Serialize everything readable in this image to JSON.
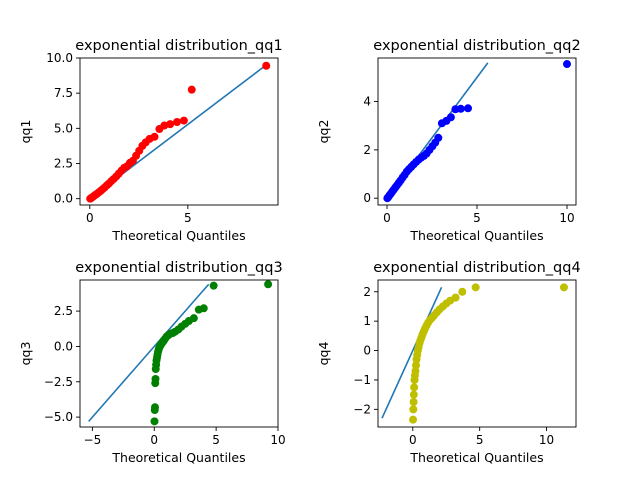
{
  "chart_data": [
    {
      "type": "scatter",
      "title": "exponential distribution_qq1",
      "xlabel": "Theoretical Quantiles",
      "ylabel": "qq1",
      "xlim": [
        -0.5,
        9.6
      ],
      "ylim": [
        -0.45,
        10.0
      ],
      "xticks": [
        "0",
        "5"
      ],
      "yticks": [
        "0.0",
        "2.5",
        "5.0",
        "7.5",
        "10.0"
      ],
      "point_color": "#ff0000",
      "line_color": "#1f77b4",
      "reference_line": {
        "x": [
          0,
          9.0
        ],
        "y": [
          0,
          9.5
        ]
      },
      "points": {
        "x": [
          0.02,
          0.08,
          0.15,
          0.22,
          0.3,
          0.38,
          0.47,
          0.56,
          0.66,
          0.76,
          0.87,
          0.98,
          1.1,
          1.22,
          1.35,
          1.48,
          1.62,
          1.76,
          1.9,
          2.05,
          2.2,
          2.36,
          2.52,
          2.68,
          2.85,
          3.05,
          3.3,
          3.55,
          3.8,
          4.1,
          4.45,
          4.8,
          5.2,
          9.0
        ],
        "y": [
          0.0,
          0.05,
          0.12,
          0.2,
          0.28,
          0.36,
          0.46,
          0.56,
          0.68,
          0.8,
          0.95,
          1.08,
          1.25,
          1.4,
          1.58,
          1.78,
          2.0,
          2.2,
          2.3,
          2.55,
          2.7,
          3.05,
          3.4,
          3.75,
          4.0,
          4.25,
          4.4,
          4.95,
          5.2,
          5.3,
          5.45,
          5.55,
          7.75,
          9.45
        ]
      }
    },
    {
      "type": "scatter",
      "title": "exponential distribution_qq2",
      "xlabel": "Theoretical Quantiles",
      "ylabel": "qq2",
      "xlim": [
        -0.5,
        10.5
      ],
      "ylim": [
        -0.28,
        5.8
      ],
      "xticks": [
        "0",
        "5",
        "10"
      ],
      "yticks": [
        "0",
        "2",
        "4"
      ],
      "point_color": "#0000ff",
      "line_color": "#1f77b4",
      "reference_line": {
        "x": [
          0,
          5.6
        ],
        "y": [
          0,
          5.6
        ]
      },
      "points": {
        "x": [
          0.02,
          0.08,
          0.15,
          0.22,
          0.3,
          0.38,
          0.47,
          0.56,
          0.66,
          0.76,
          0.87,
          0.98,
          1.1,
          1.22,
          1.35,
          1.48,
          1.62,
          1.76,
          1.9,
          2.05,
          2.2,
          2.36,
          2.52,
          2.68,
          2.85,
          3.05,
          3.3,
          3.55,
          3.8,
          4.1,
          4.5,
          10.0
        ],
        "y": [
          0.0,
          0.06,
          0.13,
          0.2,
          0.28,
          0.36,
          0.45,
          0.54,
          0.64,
          0.74,
          0.86,
          0.97,
          1.1,
          1.2,
          1.3,
          1.4,
          1.5,
          1.6,
          1.68,
          1.75,
          1.85,
          2.0,
          2.15,
          2.3,
          2.5,
          3.1,
          3.2,
          3.35,
          3.68,
          3.7,
          3.72,
          5.55
        ]
      }
    },
    {
      "type": "scatter",
      "title": "exponential distribution_qq3",
      "xlabel": "Theoretical Quantiles",
      "ylabel": "qq3",
      "xlim": [
        -6.0,
        10.0
      ],
      "ylim": [
        -5.7,
        4.7
      ],
      "xticks": [
        "−5",
        "0",
        "5",
        "10"
      ],
      "yticks": [
        "−5.0",
        "−2.5",
        "0.0",
        "2.5"
      ],
      "point_color": "#008000",
      "line_color": "#1f77b4",
      "reference_line": {
        "x": [
          -5.3,
          4.4
        ],
        "y": [
          -5.3,
          4.4
        ]
      },
      "points": {
        "x": [
          0.02,
          0.04,
          0.06,
          0.08,
          0.1,
          0.12,
          0.15,
          0.18,
          0.22,
          0.26,
          0.3,
          0.35,
          0.4,
          0.46,
          0.52,
          0.6,
          0.68,
          0.78,
          0.88,
          1.0,
          1.15,
          1.3,
          1.5,
          1.7,
          1.95,
          2.2,
          2.5,
          2.8,
          3.2,
          3.6,
          4.0,
          4.8,
          9.2
        ],
        "y": [
          -5.3,
          -4.5,
          -4.3,
          -2.6,
          -2.3,
          -1.6,
          -1.3,
          -1.0,
          -0.8,
          -0.6,
          -0.4,
          -0.25,
          -0.1,
          0.0,
          0.1,
          0.2,
          0.3,
          0.42,
          0.55,
          0.7,
          0.8,
          0.9,
          0.95,
          1.05,
          1.2,
          1.4,
          1.6,
          1.8,
          2.0,
          2.6,
          2.7,
          4.3,
          4.4
        ]
      }
    },
    {
      "type": "scatter",
      "title": "exponential distribution_qq4",
      "xlabel": "Theoretical Quantiles",
      "ylabel": "qq4",
      "xlim": [
        -2.6,
        12.2
      ],
      "ylim": [
        -2.6,
        2.4
      ],
      "xticks": [
        "0",
        "5",
        "10"
      ],
      "yticks": [
        "−2",
        "−1",
        "0",
        "1",
        "2"
      ],
      "point_color": "#bfbf00",
      "line_color": "#1f77b4",
      "reference_line": {
        "x": [
          -2.3,
          2.15
        ],
        "y": [
          -2.3,
          2.15
        ]
      },
      "points": {
        "x": [
          0.02,
          0.04,
          0.06,
          0.08,
          0.1,
          0.13,
          0.16,
          0.2,
          0.24,
          0.28,
          0.33,
          0.38,
          0.44,
          0.5,
          0.57,
          0.65,
          0.73,
          0.82,
          0.92,
          1.03,
          1.15,
          1.3,
          1.45,
          1.6,
          1.8,
          2.0,
          2.25,
          2.5,
          2.8,
          3.2,
          3.7,
          4.7,
          11.3
        ],
        "y": [
          -2.35,
          -2.0,
          -1.75,
          -1.5,
          -1.25,
          -1.0,
          -0.85,
          -0.7,
          -0.5,
          -0.3,
          -0.15,
          0.0,
          0.12,
          0.25,
          0.35,
          0.45,
          0.55,
          0.65,
          0.75,
          0.85,
          0.95,
          1.05,
          1.12,
          1.2,
          1.3,
          1.4,
          1.5,
          1.6,
          1.7,
          1.8,
          2.0,
          2.15,
          2.15
        ]
      }
    }
  ]
}
